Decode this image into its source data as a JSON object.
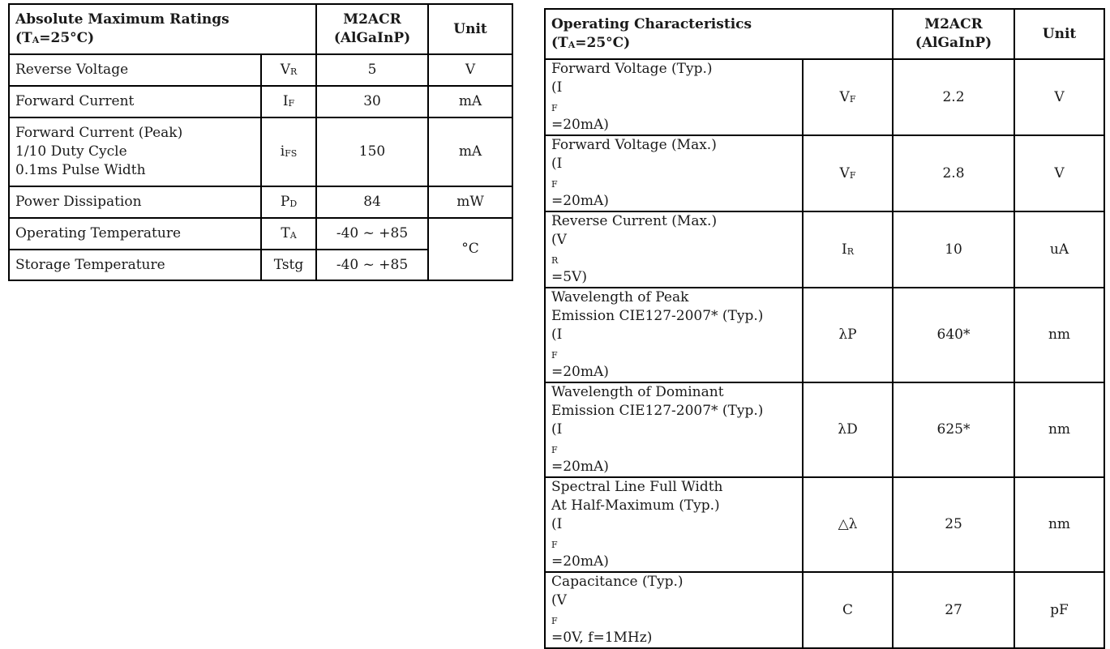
{
  "absolute_max": {
    "title_line1": "Absolute Maximum Ratings",
    "condition_prefix": "(T",
    "condition_sub": "A",
    "condition_suffix": "=25°C)",
    "col_part_line1": "M2ACR",
    "col_part_line2": "(AlGaInP)",
    "col_unit": "Unit",
    "rows": [
      {
        "param": "Reverse Voltage",
        "sym": "V",
        "sym_sub": "R",
        "value": "5",
        "unit": "V"
      },
      {
        "param": "Forward Current",
        "sym": "I",
        "sym_sub": "F",
        "value": "30",
        "unit": "mA"
      },
      {
        "param_lines": [
          "Forward Current (Peak)",
          "1/10 Duty Cycle",
          "0.1ms Pulse Width"
        ],
        "sym": "i",
        "sym_sub": "FS",
        "value": "150",
        "unit": "mA"
      },
      {
        "param": "Power Dissipation",
        "sym": "P",
        "sym_sub": "D",
        "value": "84",
        "unit": "mW"
      },
      {
        "param": "Operating Temperature",
        "sym": "T",
        "sym_sub": "A",
        "value": "-40 ~ +85",
        "unit": "°C"
      },
      {
        "param": "Storage Temperature",
        "sym": "Tstg",
        "sym_sub": "",
        "value": "-40 ~ +85"
      }
    ]
  },
  "operating": {
    "title_line1": "Operating Characteristics",
    "condition_prefix": "(T",
    "condition_sub": "A",
    "condition_suffix": "=25°C)",
    "col_part_line1": "M2ACR",
    "col_part_line2": "(AlGaInP)",
    "col_unit": "Unit",
    "rows": [
      {
        "lines": [
          "Forward Voltage (Typ.)"
        ],
        "cond_prefix": "(I",
        "cond_sub": "F",
        "cond_suffix": "=20mA)",
        "sym": "V",
        "sym_sub": "F",
        "value": "2.2",
        "unit": "V"
      },
      {
        "lines": [
          "Forward Voltage (Max.)"
        ],
        "cond_prefix": "(I",
        "cond_sub": "F",
        "cond_suffix": "=20mA)",
        "sym": "V",
        "sym_sub": "F",
        "value": "2.8",
        "unit": "V"
      },
      {
        "lines": [
          "Reverse Current (Max.)"
        ],
        "cond_prefix": "(V",
        "cond_sub": "R",
        "cond_suffix": "=5V)",
        "sym": "I",
        "sym_sub": "R",
        "value": "10",
        "unit": "uA"
      },
      {
        "lines": [
          "Wavelength of Peak",
          "Emission CIE127-2007* (Typ.)"
        ],
        "cond_prefix": "(I",
        "cond_sub": "F",
        "cond_suffix": "=20mA)",
        "sym": "λP",
        "sym_sub": "",
        "value": "640*",
        "unit": "nm"
      },
      {
        "lines": [
          "Wavelength of Dominant",
          "Emission CIE127-2007* (Typ.)"
        ],
        "cond_prefix": "(I",
        "cond_sub": "F",
        "cond_suffix": "=20mA)",
        "sym": "λD",
        "sym_sub": "",
        "value": "625*",
        "unit": "nm"
      },
      {
        "lines": [
          "Spectral Line Full Width",
          "At Half-Maximum (Typ.)"
        ],
        "cond_prefix": "(I",
        "cond_sub": "F",
        "cond_suffix": "=20mA)",
        "sym": "△λ",
        "sym_sub": "",
        "value": "25",
        "unit": "nm"
      },
      {
        "lines": [
          "Capacitance (Typ.)"
        ],
        "cond_prefix": "(V",
        "cond_sub": "F",
        "cond_suffix": "=0V, f=1MHz)",
        "sym": "C",
        "sym_sub": "",
        "value": "27",
        "unit": "pF"
      }
    ]
  }
}
